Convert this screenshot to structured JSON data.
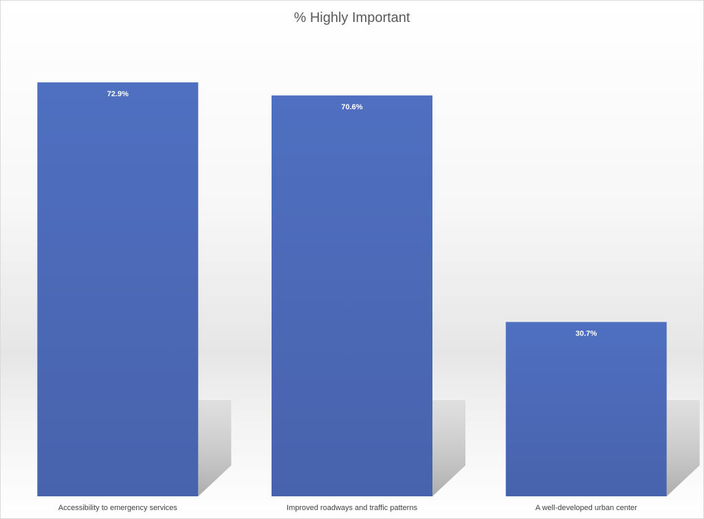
{
  "chart_data": {
    "type": "bar",
    "title": "% Highly Important",
    "categories": [
      "Accessibility to emergency services",
      "Improved roadways and traffic patterns",
      "A well-developed urban center"
    ],
    "values": [
      72.9,
      70.6,
      30.7
    ],
    "data_labels": [
      "72.9%",
      "70.6%",
      "30.7%"
    ],
    "ylim": [
      0,
      100
    ],
    "grid": false,
    "legend": "none",
    "bar_color": "#4f6fc0",
    "bar_color_dark": "#4863ad",
    "shadow_color": "#bfbfbf"
  }
}
